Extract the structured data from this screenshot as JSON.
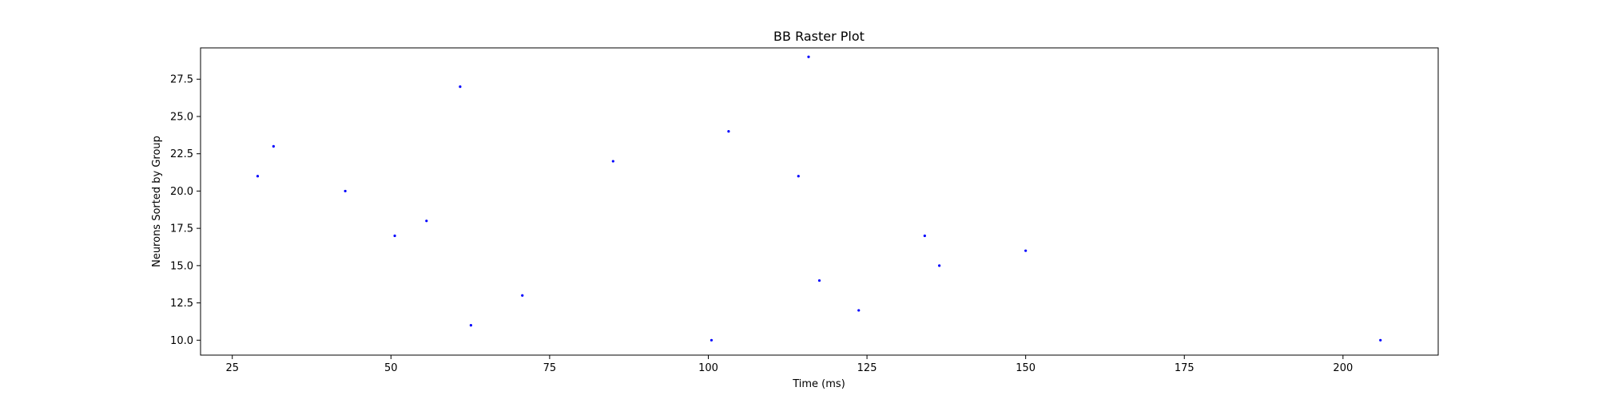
{
  "chart_data": {
    "type": "scatter",
    "title": "BB Raster Plot",
    "xlabel": "Time (ms)",
    "ylabel": "Neurons Sorted by Group",
    "xlim": [
      20,
      215
    ],
    "ylim": [
      9.0,
      29.6
    ],
    "xticks": [
      25,
      50,
      75,
      100,
      125,
      150,
      175,
      200
    ],
    "xtick_labels": [
      "25",
      "50",
      "75",
      "100",
      "125",
      "150",
      "175",
      "200"
    ],
    "yticks": [
      10.0,
      12.5,
      15.0,
      17.5,
      20.0,
      22.5,
      25.0,
      27.5
    ],
    "ytick_labels": [
      "10.0",
      "12.5",
      "15.0",
      "17.5",
      "20.0",
      "22.5",
      "25.0",
      "27.5"
    ],
    "grid": false,
    "marker_color": "#0000ff",
    "x": [
      29.0,
      31.5,
      42.8,
      50.6,
      55.6,
      60.9,
      62.6,
      70.7,
      85.0,
      100.5,
      103.2,
      114.2,
      115.8,
      117.5,
      123.7,
      134.1,
      136.4,
      150.0,
      205.9
    ],
    "y": [
      21,
      23,
      20,
      17,
      18,
      27,
      11,
      13,
      22,
      10,
      24,
      21,
      29,
      14,
      12,
      17,
      15,
      16,
      10
    ]
  }
}
